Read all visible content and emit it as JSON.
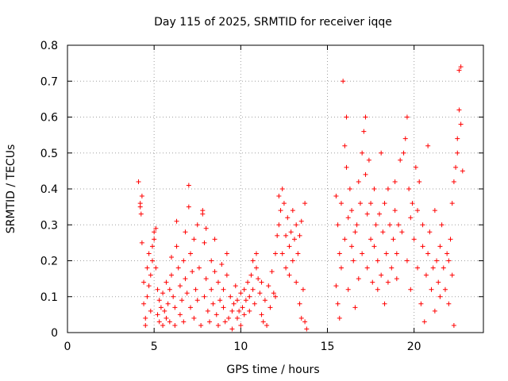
{
  "chart_data": {
    "type": "scatter",
    "title": "Day 115 of 2025, SRMTID for receiver iqqe",
    "xlabel": "GPS time / hours",
    "ylabel": "SRMTID / TECUs",
    "xlim": [
      0,
      24
    ],
    "ylim": [
      0,
      0.8
    ],
    "xticks": [
      0,
      5,
      10,
      15,
      20
    ],
    "yticks": [
      0,
      0.1,
      0.2,
      0.3,
      0.4,
      0.5,
      0.6,
      0.7,
      0.8
    ],
    "xtick_labels": [
      "0",
      "5",
      "10",
      "15",
      "20"
    ],
    "ytick_labels": [
      "0",
      "0.1",
      "0.2",
      "0.3",
      "0.4",
      "0.5",
      "0.6",
      "0.7",
      "0.8"
    ],
    "grid": true,
    "marker": "+",
    "color": "#ff0000",
    "series": [
      {
        "name": "SRMTID",
        "points": [
          [
            4.1,
            0.42
          ],
          [
            4.2,
            0.36
          ],
          [
            4.2,
            0.35
          ],
          [
            4.25,
            0.33
          ],
          [
            4.3,
            0.38
          ],
          [
            4.3,
            0.25
          ],
          [
            4.4,
            0.14
          ],
          [
            4.4,
            0.08
          ],
          [
            4.5,
            0.04
          ],
          [
            4.5,
            0.02
          ],
          [
            4.6,
            0.1
          ],
          [
            4.6,
            0.18
          ],
          [
            4.7,
            0.22
          ],
          [
            4.7,
            0.13
          ],
          [
            4.8,
            0.06
          ],
          [
            4.8,
            0.16
          ],
          [
            4.9,
            0.24
          ],
          [
            4.9,
            0.2
          ],
          [
            5.0,
            0.28
          ],
          [
            5.0,
            0.26
          ],
          [
            5.1,
            0.29
          ],
          [
            5.1,
            0.18
          ],
          [
            5.2,
            0.12
          ],
          [
            5.2,
            0.05
          ],
          [
            5.3,
            0.03
          ],
          [
            5.3,
            0.09
          ],
          [
            5.4,
            0.07
          ],
          [
            5.5,
            0.11
          ],
          [
            5.5,
            0.02
          ],
          [
            5.6,
            0.06
          ],
          [
            5.7,
            0.14
          ],
          [
            5.7,
            0.04
          ],
          [
            5.8,
            0.08
          ],
          [
            5.9,
            0.12
          ],
          [
            5.9,
            0.03
          ],
          [
            6.0,
            0.21
          ],
          [
            6.0,
            0.16
          ],
          [
            6.1,
            0.1
          ],
          [
            6.2,
            0.07
          ],
          [
            6.2,
            0.02
          ],
          [
            6.3,
            0.24
          ],
          [
            6.3,
            0.31
          ],
          [
            6.4,
            0.18
          ],
          [
            6.5,
            0.05
          ],
          [
            6.5,
            0.13
          ],
          [
            6.6,
            0.09
          ],
          [
            6.7,
            0.2
          ],
          [
            6.7,
            0.03
          ],
          [
            6.8,
            0.15
          ],
          [
            6.8,
            0.28
          ],
          [
            6.9,
            0.11
          ],
          [
            7.0,
            0.41
          ],
          [
            7.0,
            0.35
          ],
          [
            7.1,
            0.22
          ],
          [
            7.1,
            0.07
          ],
          [
            7.2,
            0.17
          ],
          [
            7.3,
            0.04
          ],
          [
            7.3,
            0.26
          ],
          [
            7.4,
            0.12
          ],
          [
            7.5,
            0.09
          ],
          [
            7.5,
            0.3
          ],
          [
            7.6,
            0.18
          ],
          [
            7.7,
            0.02
          ],
          [
            7.8,
            0.34
          ],
          [
            7.8,
            0.33
          ],
          [
            7.9,
            0.25
          ],
          [
            7.9,
            0.1
          ],
          [
            8.0,
            0.29
          ],
          [
            8.0,
            0.15
          ],
          [
            8.1,
            0.06
          ],
          [
            8.2,
            0.03
          ],
          [
            8.3,
            0.12
          ],
          [
            8.3,
            0.2
          ],
          [
            8.4,
            0.08
          ],
          [
            8.5,
            0.17
          ],
          [
            8.5,
            0.26
          ],
          [
            8.6,
            0.05
          ],
          [
            8.7,
            0.14
          ],
          [
            8.7,
            0.02
          ],
          [
            8.8,
            0.09
          ],
          [
            8.9,
            0.19
          ],
          [
            9.0,
            0.07
          ],
          [
            9.0,
            0.12
          ],
          [
            9.1,
            0.03
          ],
          [
            9.2,
            0.16
          ],
          [
            9.2,
            0.22
          ],
          [
            9.3,
            0.04
          ],
          [
            9.4,
            0.1
          ],
          [
            9.5,
            0.06
          ],
          [
            9.5,
            0.01
          ],
          [
            9.6,
            0.08
          ],
          [
            9.7,
            0.13
          ],
          [
            9.8,
            0.04
          ],
          [
            9.8,
            0.09
          ],
          [
            9.9,
            0.06
          ],
          [
            10.0,
            0.02
          ],
          [
            10.0,
            0.11
          ],
          [
            10.1,
            0.07
          ],
          [
            10.2,
            0.05
          ],
          [
            10.2,
            0.12
          ],
          [
            10.3,
            0.09
          ],
          [
            10.4,
            0.14
          ],
          [
            10.5,
            0.1
          ],
          [
            10.5,
            0.06
          ],
          [
            10.6,
            0.16
          ],
          [
            10.7,
            0.12
          ],
          [
            10.7,
            0.2
          ],
          [
            10.8,
            0.08
          ],
          [
            10.9,
            0.18
          ],
          [
            10.9,
            0.22
          ],
          [
            11.0,
            0.15
          ],
          [
            11.1,
            0.11
          ],
          [
            11.2,
            0.05
          ],
          [
            11.2,
            0.14
          ],
          [
            11.3,
            0.03
          ],
          [
            11.4,
            0.09
          ],
          [
            11.5,
            0.02
          ],
          [
            11.6,
            0.13
          ],
          [
            11.7,
            0.07
          ],
          [
            11.8,
            0.17
          ],
          [
            11.9,
            0.11
          ],
          [
            12.0,
            0.22
          ],
          [
            12.0,
            0.1
          ],
          [
            12.1,
            0.27
          ],
          [
            12.2,
            0.38
          ],
          [
            12.2,
            0.3
          ],
          [
            12.3,
            0.34
          ],
          [
            12.4,
            0.4
          ],
          [
            12.4,
            0.22
          ],
          [
            12.5,
            0.36
          ],
          [
            12.6,
            0.18
          ],
          [
            12.6,
            0.27
          ],
          [
            12.7,
            0.32
          ],
          [
            12.8,
            0.24
          ],
          [
            12.8,
            0.16
          ],
          [
            12.9,
            0.28
          ],
          [
            13.0,
            0.2
          ],
          [
            13.0,
            0.34
          ],
          [
            13.1,
            0.26
          ],
          [
            13.2,
            0.3
          ],
          [
            13.2,
            0.14
          ],
          [
            13.3,
            0.22
          ],
          [
            13.4,
            0.08
          ],
          [
            13.4,
            0.27
          ],
          [
            13.5,
            0.04
          ],
          [
            13.5,
            0.31
          ],
          [
            13.6,
            0.12
          ],
          [
            13.7,
            0.36
          ],
          [
            13.7,
            0.03
          ],
          [
            13.8,
            0.01
          ],
          [
            15.5,
            0.38
          ],
          [
            15.5,
            0.13
          ],
          [
            15.6,
            0.08
          ],
          [
            15.6,
            0.3
          ],
          [
            15.7,
            0.22
          ],
          [
            15.7,
            0.04
          ],
          [
            15.8,
            0.36
          ],
          [
            15.8,
            0.18
          ],
          [
            15.9,
            0.7
          ],
          [
            16.0,
            0.26
          ],
          [
            16.0,
            0.52
          ],
          [
            16.1,
            0.6
          ],
          [
            16.1,
            0.46
          ],
          [
            16.2,
            0.32
          ],
          [
            16.2,
            0.12
          ],
          [
            16.3,
            0.4
          ],
          [
            16.4,
            0.24
          ],
          [
            16.4,
            0.34
          ],
          [
            16.5,
            0.2
          ],
          [
            16.6,
            0.28
          ],
          [
            16.6,
            0.07
          ],
          [
            16.7,
            0.3
          ],
          [
            16.8,
            0.15
          ],
          [
            16.8,
            0.42
          ],
          [
            16.9,
            0.36
          ],
          [
            17.0,
            0.5
          ],
          [
            17.0,
            0.22
          ],
          [
            17.1,
            0.56
          ],
          [
            17.2,
            0.6
          ],
          [
            17.2,
            0.44
          ],
          [
            17.3,
            0.33
          ],
          [
            17.3,
            0.18
          ],
          [
            17.4,
            0.48
          ],
          [
            17.5,
            0.26
          ],
          [
            17.5,
            0.36
          ],
          [
            17.6,
            0.14
          ],
          [
            17.7,
            0.24
          ],
          [
            17.7,
            0.4
          ],
          [
            17.8,
            0.3
          ],
          [
            17.9,
            0.12
          ],
          [
            17.9,
            0.2
          ],
          [
            18.0,
            0.33
          ],
          [
            18.1,
            0.5
          ],
          [
            18.1,
            0.16
          ],
          [
            18.2,
            0.28
          ],
          [
            18.3,
            0.08
          ],
          [
            18.3,
            0.36
          ],
          [
            18.4,
            0.22
          ],
          [
            18.5,
            0.4
          ],
          [
            18.5,
            0.14
          ],
          [
            18.6,
            0.3
          ],
          [
            18.7,
            0.18
          ],
          [
            18.8,
            0.26
          ],
          [
            18.9,
            0.34
          ],
          [
            18.9,
            0.42
          ],
          [
            19.0,
            0.22
          ],
          [
            19.0,
            0.15
          ],
          [
            19.1,
            0.3
          ],
          [
            19.2,
            0.48
          ],
          [
            19.3,
            0.28
          ],
          [
            19.4,
            0.5
          ],
          [
            19.5,
            0.54
          ],
          [
            19.6,
            0.6
          ],
          [
            19.6,
            0.2
          ],
          [
            19.7,
            0.4
          ],
          [
            19.8,
            0.32
          ],
          [
            19.8,
            0.12
          ],
          [
            19.9,
            0.36
          ],
          [
            20.0,
            0.26
          ],
          [
            20.1,
            0.46
          ],
          [
            20.2,
            0.18
          ],
          [
            20.2,
            0.34
          ],
          [
            20.3,
            0.42
          ],
          [
            20.4,
            0.08
          ],
          [
            20.5,
            0.24
          ],
          [
            20.5,
            0.3
          ],
          [
            20.6,
            0.03
          ],
          [
            20.7,
            0.16
          ],
          [
            20.8,
            0.52
          ],
          [
            20.8,
            0.22
          ],
          [
            20.9,
            0.28
          ],
          [
            21.0,
            0.12
          ],
          [
            21.1,
            0.18
          ],
          [
            21.2,
            0.34
          ],
          [
            21.2,
            0.06
          ],
          [
            21.3,
            0.2
          ],
          [
            21.4,
            0.14
          ],
          [
            21.5,
            0.24
          ],
          [
            21.5,
            0.1
          ],
          [
            21.6,
            0.3
          ],
          [
            21.7,
            0.18
          ],
          [
            21.8,
            0.12
          ],
          [
            21.9,
            0.22
          ],
          [
            22.0,
            0.08
          ],
          [
            22.0,
            0.2
          ],
          [
            22.1,
            0.26
          ],
          [
            22.2,
            0.16
          ],
          [
            22.2,
            0.36
          ],
          [
            22.3,
            0.42
          ],
          [
            22.3,
            0.02
          ],
          [
            22.4,
            0.46
          ],
          [
            22.5,
            0.54
          ],
          [
            22.5,
            0.5
          ],
          [
            22.6,
            0.62
          ],
          [
            22.6,
            0.73
          ],
          [
            22.7,
            0.74
          ],
          [
            22.7,
            0.58
          ],
          [
            22.8,
            0.45
          ]
        ]
      }
    ]
  }
}
